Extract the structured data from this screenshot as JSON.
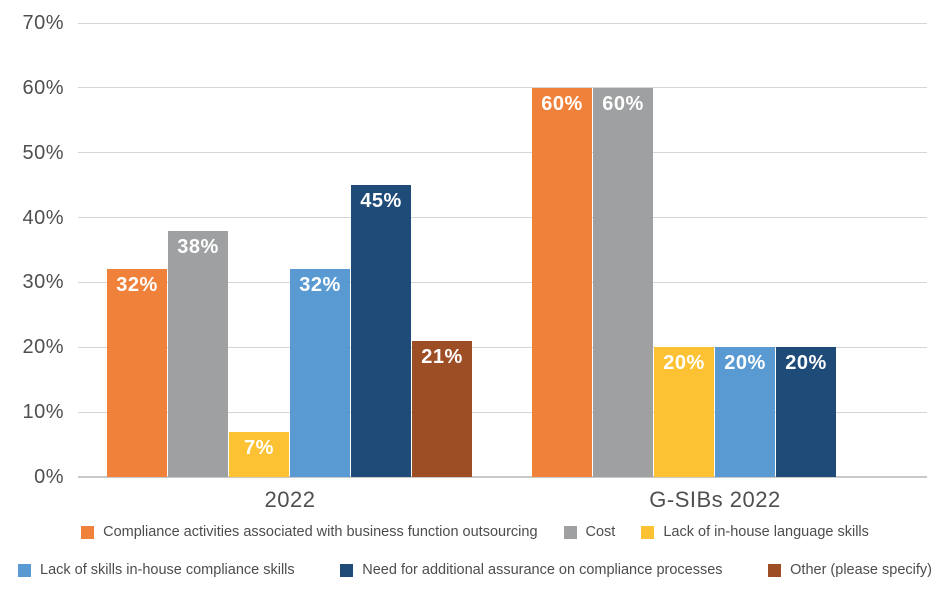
{
  "chart_data": {
    "type": "bar",
    "title": "",
    "categories": [
      "2022",
      "G-SIBs 2022"
    ],
    "series": [
      {
        "name": "Compliance activities associated with business function outsourcing",
        "color": "#f0813a",
        "values": [
          32,
          60
        ]
      },
      {
        "name": "Cost",
        "color": "#9ea0a2",
        "values": [
          38,
          60
        ]
      },
      {
        "name": "Lack of in-house language skills",
        "color": "#fcc233",
        "values": [
          7,
          20
        ]
      },
      {
        "name": "Lack of skills in-house compliance skills",
        "color": "#5a9ad3",
        "values": [
          32,
          20
        ]
      },
      {
        "name": "Need for additional assurance on compliance processes",
        "color": "#1e4b78",
        "values": [
          45,
          20
        ]
      },
      {
        "name": "Other (please specify)",
        "color": "#9e4e25",
        "values": [
          21,
          0
        ]
      }
    ],
    "xlabel": "",
    "ylabel": "",
    "ylim": [
      0,
      70
    ],
    "y_ticks": [
      "0%",
      "10%",
      "20%",
      "30%",
      "40%",
      "50%",
      "60%",
      "70%"
    ],
    "grid": true,
    "legend_position": "bottom",
    "legend_rows": [
      [
        0,
        1,
        2
      ],
      [
        3,
        4,
        5
      ]
    ],
    "data_label_suffix": "%",
    "colors": {
      "gridline": "#d5d5d5",
      "baseline": "#c9c9c9",
      "axis_text": "#4f4f4f",
      "data_label_text": "#ffffff",
      "background": "#ffffff"
    }
  }
}
